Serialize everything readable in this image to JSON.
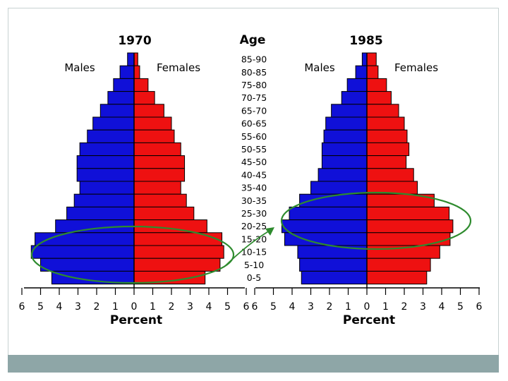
{
  "colors": {
    "male": "#1010d8",
    "female": "#ee1111",
    "highlight": "#2e8b2e",
    "footer": "#8ea6a7"
  },
  "age_header": "Age",
  "chart_data": [
    {
      "type": "bar",
      "subtype": "population-pyramid",
      "title": "1970",
      "left_label": "Males",
      "right_label": "Females",
      "xlabel": "Percent",
      "xlim": [
        -6,
        6
      ],
      "x_ticks": [
        "6",
        "5",
        "4",
        "3",
        "2",
        "1",
        "0",
        "1",
        "2",
        "3",
        "4",
        "5",
        "6"
      ],
      "categories": [
        "85-90",
        "80-85",
        "75-80",
        "70-75",
        "65-70",
        "60-65",
        "55-60",
        "50-55",
        "45-50",
        "40-45",
        "35-40",
        "30-35",
        "25-30",
        "20-25",
        "15-20",
        "10-15",
        "5-10",
        "0-5"
      ],
      "series": [
        {
          "name": "Males",
          "values": [
            0.35,
            0.75,
            1.1,
            1.4,
            1.8,
            2.2,
            2.5,
            2.9,
            3.05,
            3.05,
            2.9,
            3.2,
            3.6,
            4.2,
            5.3,
            5.5,
            5.0,
            4.4
          ]
        },
        {
          "name": "Females",
          "values": [
            0.2,
            0.3,
            0.75,
            1.1,
            1.6,
            2.0,
            2.15,
            2.5,
            2.7,
            2.7,
            2.5,
            2.8,
            3.2,
            3.9,
            4.7,
            4.8,
            4.6,
            3.8
          ]
        }
      ],
      "highlight": "ellipse around ages 5-20"
    },
    {
      "type": "bar",
      "subtype": "population-pyramid",
      "title": "1985",
      "left_label": "Males",
      "right_label": "Females",
      "xlabel": "Percent",
      "xlim": [
        -6,
        6
      ],
      "x_ticks": [
        "6",
        "5",
        "4",
        "3",
        "2",
        "1",
        "0",
        "1",
        "2",
        "3",
        "4",
        "5",
        "6"
      ],
      "categories": [
        "85-90",
        "80-85",
        "75-80",
        "70-75",
        "65-70",
        "60-65",
        "55-60",
        "50-55",
        "45-50",
        "40-45",
        "35-40",
        "30-35",
        "25-30",
        "20-25",
        "15-20",
        "10-15",
        "5-10",
        "0-5"
      ],
      "series": [
        {
          "name": "Males",
          "values": [
            0.25,
            0.6,
            1.05,
            1.35,
            1.9,
            2.2,
            2.3,
            2.4,
            2.4,
            2.6,
            3.0,
            3.6,
            4.15,
            4.55,
            4.4,
            3.7,
            3.6,
            3.5
          ]
        },
        {
          "name": "Females",
          "values": [
            0.5,
            0.6,
            1.05,
            1.3,
            1.7,
            2.0,
            2.15,
            2.25,
            2.1,
            2.5,
            2.7,
            3.6,
            4.4,
            4.6,
            4.45,
            3.9,
            3.4,
            3.2
          ]
        }
      ],
      "highlight": "ellipse around ages 20-35"
    }
  ]
}
